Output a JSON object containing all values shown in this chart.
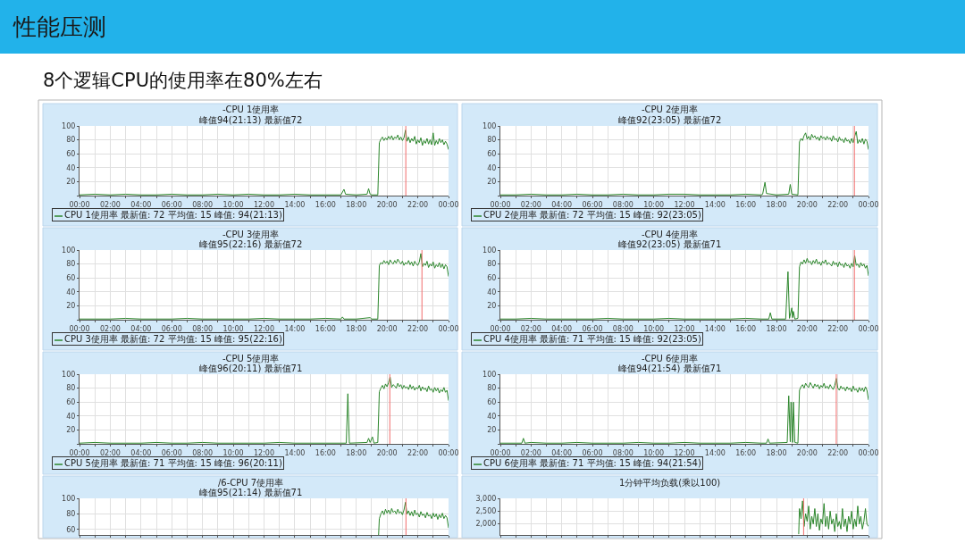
{
  "chart_data": [
    {
      "type": "other",
      "title": "性能压测",
      "subtitle": "8个逻辑CPU的使用率在80%左右"
    },
    {
      "type": "line",
      "title": "-CPU 1使用率",
      "subtitle": "峰值94(21:13) 最新值72",
      "xlim": [
        0,
        24
      ],
      "xticks": [
        {
          "value": 0,
          "label": "00:00"
        },
        {
          "value": 1,
          "label": null
        },
        {
          "value": 2,
          "label": "02:00"
        },
        {
          "value": 3,
          "label": null
        },
        {
          "value": 4,
          "label": "04:00"
        },
        {
          "value": 5,
          "label": null
        },
        {
          "value": 6,
          "label": "06:00"
        },
        {
          "value": 7,
          "label": null
        },
        {
          "value": 8,
          "label": "08:00"
        },
        {
          "value": 9,
          "label": null
        },
        {
          "value": 10,
          "label": "10:00"
        },
        {
          "value": 11,
          "label": null
        },
        {
          "value": 12,
          "label": "12:00"
        },
        {
          "value": 13,
          "label": null
        },
        {
          "value": 14,
          "label": "14:00"
        },
        {
          "value": 15,
          "label": null
        },
        {
          "value": 16,
          "label": "16:00"
        },
        {
          "value": 17,
          "label": null
        },
        {
          "value": 18,
          "label": "18:00"
        },
        {
          "value": 19,
          "label": null
        },
        {
          "value": 20,
          "label": "20:00"
        },
        {
          "value": 21,
          "label": null
        },
        {
          "value": 22,
          "label": "22:00"
        },
        {
          "value": 23,
          "label": null
        },
        {
          "value": 24,
          "label": "00:00"
        }
      ],
      "ylim": [
        0,
        100
      ],
      "yticks": [
        {
          "value": 0,
          "label": null
        },
        20,
        40,
        60,
        80,
        100
      ],
      "grid": true,
      "legend": "bottom left",
      "series": [
        {
          "name": "CPU 1使用率 最新值: 72 平均值: 15 峰值: 94(21:13)",
          "color": "#2b862b",
          "x": [
            0,
            1,
            2,
            3,
            4,
            5,
            6,
            7,
            8,
            9,
            10,
            11,
            12,
            13,
            14,
            15,
            16,
            17,
            17.2,
            17.3,
            18,
            18.7,
            18.8,
            18.9,
            19,
            19.4,
            19.5,
            19.6,
            19.7,
            19.8,
            19.9,
            20,
            20.1,
            20.2,
            20.3,
            20.4,
            20.5,
            20.6,
            20.7,
            20.8,
            20.9,
            21,
            21.1,
            21.2,
            21.3,
            21.4,
            21.5,
            21.6,
            21.7,
            21.8,
            21.9,
            22,
            22.1,
            22.2,
            22.3,
            22.4,
            22.5,
            22.6,
            22.7,
            22.8,
            22.9,
            23,
            23.1,
            23.2,
            23.3,
            23.4,
            23.5,
            23.6,
            23.7,
            23.8,
            23.9,
            24
          ],
          "values": [
            1,
            2,
            1,
            2,
            1,
            1,
            2,
            1,
            1,
            2,
            1,
            2,
            1,
            1,
            2,
            1,
            1,
            1,
            9,
            2,
            1,
            2,
            10,
            2,
            1,
            1,
            76,
            81,
            84,
            79,
            83,
            80,
            85,
            81,
            86,
            80,
            84,
            82,
            87,
            80,
            84,
            79,
            83,
            94,
            78,
            84,
            76,
            82,
            78,
            85,
            74,
            80,
            76,
            83,
            72,
            79,
            75,
            82,
            74,
            80,
            73,
            90,
            72,
            79,
            74,
            82,
            76,
            80,
            73,
            78,
            74,
            66
          ]
        }
      ],
      "ref_lines": [
        {
          "axis": "x",
          "value": 21.22,
          "color": "#f26b6b"
        }
      ]
    },
    {
      "type": "line",
      "title": "-CPU 2使用率",
      "subtitle": "峰值92(23:05) 最新值72",
      "xlim": [
        0,
        24
      ],
      "xticks": [
        {
          "value": 0,
          "label": "00:00"
        },
        {
          "value": 1,
          "label": null
        },
        {
          "value": 2,
          "label": "02:00"
        },
        {
          "value": 3,
          "label": null
        },
        {
          "value": 4,
          "label": "04:00"
        },
        {
          "value": 5,
          "label": null
        },
        {
          "value": 6,
          "label": "06:00"
        },
        {
          "value": 7,
          "label": null
        },
        {
          "value": 8,
          "label": "08:00"
        },
        {
          "value": 9,
          "label": null
        },
        {
          "value": 10,
          "label": "10:00"
        },
        {
          "value": 11,
          "label": null
        },
        {
          "value": 12,
          "label": "12:00"
        },
        {
          "value": 13,
          "label": null
        },
        {
          "value": 14,
          "label": "14:00"
        },
        {
          "value": 15,
          "label": null
        },
        {
          "value": 16,
          "label": "16:00"
        },
        {
          "value": 17,
          "label": null
        },
        {
          "value": 18,
          "label": "18:00"
        },
        {
          "value": 19,
          "label": null
        },
        {
          "value": 20,
          "label": "20:00"
        },
        {
          "value": 21,
          "label": null
        },
        {
          "value": 22,
          "label": "22:00"
        },
        {
          "value": 23,
          "label": null
        },
        {
          "value": 24,
          "label": "00:00"
        }
      ],
      "ylim": [
        0,
        100
      ],
      "yticks": [
        {
          "value": 0,
          "label": null
        },
        20,
        40,
        60,
        80,
        100
      ],
      "grid": true,
      "legend": "bottom left",
      "series": [
        {
          "name": "CPU 2使用率 最新值: 72 平均值: 15 峰值: 92(23:05)",
          "color": "#2b862b",
          "x": [
            0,
            1,
            2,
            3,
            4,
            5,
            6,
            7,
            8,
            9,
            10,
            11,
            12,
            13,
            14,
            15,
            16,
            17,
            17.1,
            17.25,
            17.35,
            18,
            18.8,
            18.9,
            19,
            19.4,
            19.5,
            19.6,
            19.7,
            19.8,
            19.9,
            20,
            20.1,
            20.2,
            20.3,
            20.4,
            20.5,
            20.6,
            20.7,
            20.8,
            20.9,
            21,
            21.1,
            21.2,
            21.3,
            21.4,
            21.5,
            21.6,
            21.7,
            21.8,
            21.9,
            22,
            22.1,
            22.2,
            22.3,
            22.4,
            22.5,
            22.6,
            22.7,
            22.8,
            22.9,
            23,
            23.1,
            23.2,
            23.3,
            23.4,
            23.5,
            23.6,
            23.7,
            23.8,
            23.9,
            24
          ],
          "values": [
            1,
            1,
            2,
            1,
            1,
            2,
            1,
            1,
            2,
            1,
            1,
            2,
            2,
            1,
            1,
            1,
            2,
            1,
            2,
            19,
            3,
            1,
            2,
            16,
            2,
            1,
            77,
            82,
            79,
            86,
            90,
            81,
            85,
            80,
            88,
            83,
            86,
            81,
            84,
            79,
            86,
            82,
            84,
            80,
            85,
            81,
            83,
            78,
            86,
            80,
            82,
            77,
            84,
            79,
            81,
            76,
            83,
            78,
            80,
            75,
            82,
            76,
            85,
            92,
            75,
            80,
            76,
            82,
            74,
            81,
            78,
            66
          ]
        }
      ],
      "ref_lines": [
        {
          "axis": "x",
          "value": 23.08,
          "color": "#f26b6b"
        }
      ]
    },
    {
      "type": "line",
      "title": "-CPU 3使用率",
      "subtitle": "峰值95(22:16) 最新值72",
      "xlim": [
        0,
        24
      ],
      "xticks": [
        {
          "value": 0,
          "label": "00:00"
        },
        {
          "value": 1,
          "label": null
        },
        {
          "value": 2,
          "label": "02:00"
        },
        {
          "value": 3,
          "label": null
        },
        {
          "value": 4,
          "label": "04:00"
        },
        {
          "value": 5,
          "label": null
        },
        {
          "value": 6,
          "label": "06:00"
        },
        {
          "value": 7,
          "label": null
        },
        {
          "value": 8,
          "label": "08:00"
        },
        {
          "value": 9,
          "label": null
        },
        {
          "value": 10,
          "label": "10:00"
        },
        {
          "value": 11,
          "label": null
        },
        {
          "value": 12,
          "label": "12:00"
        },
        {
          "value": 13,
          "label": null
        },
        {
          "value": 14,
          "label": "14:00"
        },
        {
          "value": 15,
          "label": null
        },
        {
          "value": 16,
          "label": "16:00"
        },
        {
          "value": 17,
          "label": null
        },
        {
          "value": 18,
          "label": "18:00"
        },
        {
          "value": 19,
          "label": null
        },
        {
          "value": 20,
          "label": "20:00"
        },
        {
          "value": 21,
          "label": null
        },
        {
          "value": 22,
          "label": "22:00"
        },
        {
          "value": 23,
          "label": null
        },
        {
          "value": 24,
          "label": "00:00"
        }
      ],
      "ylim": [
        0,
        100
      ],
      "yticks": [
        {
          "value": 0,
          "label": null
        },
        20,
        40,
        60,
        80,
        100
      ],
      "grid": true,
      "legend": "bottom left",
      "series": [
        {
          "name": "CPU 3使用率 最新值: 72 平均值: 15 峰值: 95(22:16)",
          "color": "#2b862b",
          "x": [
            0,
            1,
            2,
            3,
            4,
            5,
            6,
            7,
            8,
            9,
            10,
            11,
            12,
            13,
            14,
            15,
            16,
            17,
            17.1,
            17.2,
            18,
            18.9,
            19,
            19.4,
            19.5,
            19.6,
            19.7,
            19.8,
            19.9,
            20,
            20.1,
            20.2,
            20.3,
            20.4,
            20.5,
            20.6,
            20.7,
            20.8,
            20.9,
            21,
            21.1,
            21.2,
            21.3,
            21.4,
            21.5,
            21.6,
            21.7,
            21.8,
            21.9,
            22,
            22.1,
            22.2,
            22.3,
            22.4,
            22.5,
            22.6,
            22.7,
            22.8,
            22.9,
            23,
            23.1,
            23.2,
            23.3,
            23.4,
            23.5,
            23.6,
            23.7,
            23.8,
            23.9,
            24
          ],
          "values": [
            1,
            1,
            1,
            2,
            1,
            1,
            1,
            2,
            1,
            1,
            1,
            1,
            2,
            1,
            1,
            1,
            2,
            1,
            4,
            1,
            1,
            3,
            1,
            1,
            78,
            82,
            80,
            85,
            81,
            84,
            79,
            86,
            82,
            80,
            85,
            81,
            87,
            83,
            80,
            84,
            78,
            82,
            80,
            85,
            79,
            83,
            77,
            84,
            80,
            78,
            83,
            95,
            76,
            81,
            78,
            84,
            75,
            80,
            77,
            83,
            74,
            79,
            76,
            82,
            75,
            80,
            73,
            79,
            76,
            62
          ]
        }
      ],
      "ref_lines": [
        {
          "axis": "x",
          "value": 22.27,
          "color": "#f26b6b"
        }
      ]
    },
    {
      "type": "line",
      "title": "-CPU 4使用率",
      "subtitle": "峰值92(23:05) 最新值71",
      "xlim": [
        0,
        24
      ],
      "xticks": [
        {
          "value": 0,
          "label": "00:00"
        },
        {
          "value": 1,
          "label": null
        },
        {
          "value": 2,
          "label": "02:00"
        },
        {
          "value": 3,
          "label": null
        },
        {
          "value": 4,
          "label": "04:00"
        },
        {
          "value": 5,
          "label": null
        },
        {
          "value": 6,
          "label": "06:00"
        },
        {
          "value": 7,
          "label": null
        },
        {
          "value": 8,
          "label": "08:00"
        },
        {
          "value": 9,
          "label": null
        },
        {
          "value": 10,
          "label": "10:00"
        },
        {
          "value": 11,
          "label": null
        },
        {
          "value": 12,
          "label": "12:00"
        },
        {
          "value": 13,
          "label": null
        },
        {
          "value": 14,
          "label": "14:00"
        },
        {
          "value": 15,
          "label": null
        },
        {
          "value": 16,
          "label": "16:00"
        },
        {
          "value": 17,
          "label": null
        },
        {
          "value": 18,
          "label": "18:00"
        },
        {
          "value": 19,
          "label": null
        },
        {
          "value": 20,
          "label": "20:00"
        },
        {
          "value": 21,
          "label": null
        },
        {
          "value": 22,
          "label": "22:00"
        },
        {
          "value": 23,
          "label": null
        },
        {
          "value": 24,
          "label": "00:00"
        }
      ],
      "ylim": [
        0,
        100
      ],
      "yticks": [
        {
          "value": 0,
          "label": null
        },
        20,
        40,
        60,
        80,
        100
      ],
      "grid": true,
      "legend": "bottom left",
      "series": [
        {
          "name": "CPU 4使用率 最新值: 71 平均值: 15 峰值: 92(23:05)",
          "color": "#2b862b",
          "x": [
            0,
            1,
            2,
            3,
            4,
            5,
            6,
            7,
            8,
            9,
            10,
            11,
            12,
            13,
            14,
            15,
            16,
            17,
            17.5,
            17.6,
            17.7,
            18.6,
            18.75,
            18.85,
            19,
            19.05,
            19.1,
            19.2,
            19.4,
            19.5,
            19.6,
            19.7,
            19.8,
            19.9,
            20,
            20.1,
            20.2,
            20.3,
            20.4,
            20.5,
            20.6,
            20.7,
            20.8,
            20.9,
            21,
            21.1,
            21.2,
            21.3,
            21.4,
            21.5,
            21.6,
            21.7,
            21.8,
            21.9,
            22,
            22.1,
            22.2,
            22.3,
            22.4,
            22.5,
            22.6,
            22.7,
            22.8,
            22.9,
            23,
            23.1,
            23.2,
            23.3,
            23.4,
            23.5,
            23.6,
            23.7,
            23.8,
            23.9,
            24
          ],
          "values": [
            1,
            1,
            2,
            1,
            1,
            1,
            1,
            2,
            1,
            1,
            1,
            2,
            1,
            1,
            1,
            1,
            2,
            1,
            1,
            10,
            1,
            1,
            69,
            2,
            17,
            3,
            12,
            1,
            2,
            76,
            83,
            80,
            86,
            81,
            88,
            82,
            84,
            79,
            85,
            81,
            87,
            80,
            83,
            78,
            84,
            81,
            86,
            79,
            82,
            80,
            77,
            84,
            79,
            82,
            76,
            83,
            78,
            80,
            75,
            82,
            77,
            79,
            74,
            81,
            76,
            92,
            78,
            80,
            75,
            82,
            77,
            80,
            74,
            78,
            63
          ]
        }
      ],
      "ref_lines": [
        {
          "axis": "x",
          "value": 23.08,
          "color": "#f26b6b"
        }
      ]
    },
    {
      "type": "line",
      "title": "-CPU 5使用率",
      "subtitle": "峰值96(20:11) 最新值71",
      "xlim": [
        0,
        24
      ],
      "xticks": [
        {
          "value": 0,
          "label": "00:00"
        },
        {
          "value": 1,
          "label": null
        },
        {
          "value": 2,
          "label": "02:00"
        },
        {
          "value": 3,
          "label": null
        },
        {
          "value": 4,
          "label": "04:00"
        },
        {
          "value": 5,
          "label": null
        },
        {
          "value": 6,
          "label": "06:00"
        },
        {
          "value": 7,
          "label": null
        },
        {
          "value": 8,
          "label": "08:00"
        },
        {
          "value": 9,
          "label": null
        },
        {
          "value": 10,
          "label": "10:00"
        },
        {
          "value": 11,
          "label": null
        },
        {
          "value": 12,
          "label": "12:00"
        },
        {
          "value": 13,
          "label": null
        },
        {
          "value": 14,
          "label": "14:00"
        },
        {
          "value": 15,
          "label": null
        },
        {
          "value": 16,
          "label": "16:00"
        },
        {
          "value": 17,
          "label": null
        },
        {
          "value": 18,
          "label": "18:00"
        },
        {
          "value": 19,
          "label": null
        },
        {
          "value": 20,
          "label": "20:00"
        },
        {
          "value": 21,
          "label": null
        },
        {
          "value": 22,
          "label": "22:00"
        },
        {
          "value": 23,
          "label": null
        },
        {
          "value": 24,
          "label": "00:00"
        }
      ],
      "ylim": [
        0,
        100
      ],
      "yticks": [
        {
          "value": 0,
          "label": null
        },
        20,
        40,
        60,
        80,
        100
      ],
      "grid": true,
      "legend": "bottom left",
      "series": [
        {
          "name": "CPU 5使用率 最新值: 71 平均值: 15 峰值: 96(20:11)",
          "color": "#2b862b",
          "x": [
            0,
            1,
            2,
            3,
            4,
            5,
            6,
            7,
            8,
            9,
            10,
            11,
            12,
            13,
            14,
            15,
            16,
            17,
            17.35,
            17.45,
            17.55,
            18.7,
            18.8,
            18.9,
            19.05,
            19.15,
            19.4,
            19.5,
            19.6,
            19.7,
            19.8,
            19.9,
            20,
            20.1,
            20.2,
            20.3,
            20.4,
            20.5,
            20.6,
            20.7,
            20.8,
            20.9,
            21,
            21.1,
            21.2,
            21.3,
            21.4,
            21.5,
            21.6,
            21.7,
            21.8,
            21.9,
            22,
            22.1,
            22.2,
            22.3,
            22.4,
            22.5,
            22.6,
            22.7,
            22.8,
            22.9,
            23,
            23.1,
            23.2,
            23.3,
            23.4,
            23.5,
            23.6,
            23.7,
            23.8,
            23.9,
            24
          ],
          "values": [
            1,
            2,
            1,
            1,
            1,
            2,
            1,
            1,
            2,
            1,
            1,
            1,
            1,
            2,
            1,
            1,
            1,
            1,
            1,
            72,
            1,
            2,
            8,
            2,
            10,
            1,
            2,
            75,
            80,
            84,
            79,
            86,
            82,
            88,
            96,
            81,
            85,
            83,
            80,
            87,
            82,
            85,
            79,
            84,
            80,
            82,
            78,
            85,
            79,
            83,
            77,
            81,
            79,
            84,
            76,
            82,
            78,
            80,
            75,
            83,
            77,
            79,
            74,
            81,
            76,
            80,
            73,
            78,
            75,
            81,
            74,
            77,
            62
          ]
        }
      ],
      "ref_lines": [
        {
          "axis": "x",
          "value": 20.18,
          "color": "#f26b6b"
        }
      ]
    },
    {
      "type": "line",
      "title": "-CPU 6使用率",
      "subtitle": "峰值94(21:54) 最新值71",
      "xlim": [
        0,
        24
      ],
      "xticks": [
        {
          "value": 0,
          "label": "00:00"
        },
        {
          "value": 1,
          "label": null
        },
        {
          "value": 2,
          "label": "02:00"
        },
        {
          "value": 3,
          "label": null
        },
        {
          "value": 4,
          "label": "04:00"
        },
        {
          "value": 5,
          "label": null
        },
        {
          "value": 6,
          "label": "06:00"
        },
        {
          "value": 7,
          "label": null
        },
        {
          "value": 8,
          "label": "08:00"
        },
        {
          "value": 9,
          "label": null
        },
        {
          "value": 10,
          "label": "10:00"
        },
        {
          "value": 11,
          "label": null
        },
        {
          "value": 12,
          "label": "12:00"
        },
        {
          "value": 13,
          "label": null
        },
        {
          "value": 14,
          "label": "14:00"
        },
        {
          "value": 15,
          "label": null
        },
        {
          "value": 16,
          "label": "16:00"
        },
        {
          "value": 17,
          "label": null
        },
        {
          "value": 18,
          "label": "18:00"
        },
        {
          "value": 19,
          "label": null
        },
        {
          "value": 20,
          "label": "20:00"
        },
        {
          "value": 21,
          "label": null
        },
        {
          "value": 22,
          "label": "22:00"
        },
        {
          "value": 23,
          "label": null
        },
        {
          "value": 24,
          "label": "00:00"
        }
      ],
      "ylim": [
        0,
        100
      ],
      "yticks": [
        {
          "value": 0,
          "label": null
        },
        20,
        40,
        60,
        80,
        100
      ],
      "grid": true,
      "legend": "bottom left",
      "series": [
        {
          "name": "CPU 6使用率 最新值: 71 平均值: 15 峰值: 94(21:54)",
          "color": "#2b862b",
          "x": [
            0,
            1,
            1.4,
            1.5,
            1.6,
            2,
            3,
            4,
            5,
            6,
            7,
            8,
            9,
            10,
            11,
            12,
            13,
            14,
            15,
            16,
            17,
            17.35,
            17.45,
            17.55,
            18.7,
            18.8,
            18.9,
            18.95,
            19.05,
            19.1,
            19.2,
            19.4,
            19.5,
            19.6,
            19.7,
            19.8,
            19.9,
            20,
            20.1,
            20.2,
            20.3,
            20.4,
            20.5,
            20.6,
            20.7,
            20.8,
            20.9,
            21,
            21.1,
            21.2,
            21.3,
            21.4,
            21.5,
            21.6,
            21.7,
            21.8,
            21.9,
            22,
            22.1,
            22.2,
            22.3,
            22.4,
            22.5,
            22.6,
            22.7,
            22.8,
            22.9,
            23,
            23.1,
            23.2,
            23.3,
            23.4,
            23.5,
            23.6,
            23.7,
            23.8,
            23.9,
            24
          ],
          "values": [
            1,
            1,
            1,
            8,
            1,
            2,
            1,
            1,
            2,
            1,
            1,
            1,
            2,
            1,
            1,
            2,
            1,
            1,
            1,
            2,
            1,
            1,
            7,
            1,
            2,
            69,
            3,
            60,
            2,
            60,
            2,
            1,
            77,
            82,
            85,
            80,
            87,
            83,
            81,
            88,
            84,
            80,
            86,
            82,
            85,
            79,
            84,
            81,
            87,
            80,
            83,
            79,
            85,
            81,
            78,
            84,
            94,
            80,
            77,
            83,
            79,
            81,
            76,
            82,
            78,
            80,
            75,
            83,
            77,
            79,
            74,
            81,
            76,
            80,
            75,
            82,
            77,
            63
          ]
        }
      ],
      "ref_lines": [
        {
          "axis": "x",
          "value": 21.9,
          "color": "#f26b6b"
        }
      ]
    },
    {
      "type": "line",
      "title": "/6-CPU 7使用率",
      "subtitle": "峰值95(21:14) 最新值71",
      "xlim": [
        0,
        24
      ],
      "xticks": [
        {
          "value": 0,
          "label": null
        },
        {
          "value": 1,
          "label": null
        },
        {
          "value": 2,
          "label": null
        },
        {
          "value": 3,
          "label": null
        },
        {
          "value": 4,
          "label": null
        },
        {
          "value": 5,
          "label": null
        },
        {
          "value": 6,
          "label": null
        },
        {
          "value": 7,
          "label": null
        },
        {
          "value": 8,
          "label": null
        },
        {
          "value": 9,
          "label": null
        },
        {
          "value": 10,
          "label": null
        },
        {
          "value": 11,
          "label": null
        },
        {
          "value": 12,
          "label": null
        },
        {
          "value": 13,
          "label": null
        },
        {
          "value": 14,
          "label": null
        },
        {
          "value": 15,
          "label": null
        },
        {
          "value": 16,
          "label": null
        },
        {
          "value": 17,
          "label": null
        },
        {
          "value": 18,
          "label": null
        },
        {
          "value": 19,
          "label": null
        },
        {
          "value": 20,
          "label": null
        },
        {
          "value": 21,
          "label": null
        },
        {
          "value": 22,
          "label": null
        },
        {
          "value": 23,
          "label": null
        },
        {
          "value": 24,
          "label": null
        }
      ],
      "ylim": [
        53,
        100
      ],
      "yticks": [
        60,
        80,
        100
      ],
      "tick_labels": "y",
      "grid": true,
      "series": [
        {
          "color": "#2b862b",
          "x": [
            19.45,
            19.5,
            19.6,
            19.7,
            19.8,
            19.9,
            20,
            20.1,
            20.2,
            20.3,
            20.4,
            20.5,
            20.6,
            20.7,
            20.8,
            20.9,
            21,
            21.1,
            21.2,
            21.3,
            21.4,
            21.5,
            21.6,
            21.7,
            21.8,
            21.9,
            22,
            22.1,
            22.2,
            22.3,
            22.4,
            22.5,
            22.6,
            22.7,
            22.8,
            22.9,
            23,
            23.1,
            23.2,
            23.3,
            23.4,
            23.5,
            23.6,
            23.7,
            23.8,
            23.9,
            24
          ],
          "values": [
            53,
            74,
            80,
            84,
            79,
            86,
            81,
            85,
            80,
            87,
            82,
            84,
            80,
            86,
            81,
            83,
            79,
            85,
            95,
            80,
            84,
            78,
            83,
            77,
            85,
            79,
            81,
            76,
            83,
            78,
            80,
            75,
            82,
            77,
            79,
            74,
            81,
            76,
            80,
            73,
            79,
            75,
            81,
            74,
            78,
            75,
            62
          ]
        }
      ],
      "ref_lines": [
        {
          "axis": "x",
          "value": 21.23,
          "color": "#f26b6b"
        }
      ]
    },
    {
      "type": "line",
      "title": "1分钟平均负载(乘以100)",
      "xlim": [
        0,
        24
      ],
      "xticks": [
        {
          "value": 0,
          "label": null
        },
        {
          "value": 1,
          "label": null
        },
        {
          "value": 2,
          "label": null
        },
        {
          "value": 3,
          "label": null
        },
        {
          "value": 4,
          "label": null
        },
        {
          "value": 5,
          "label": null
        },
        {
          "value": 6,
          "label": null
        },
        {
          "value": 7,
          "label": null
        },
        {
          "value": 8,
          "label": null
        },
        {
          "value": 9,
          "label": null
        },
        {
          "value": 10,
          "label": null
        },
        {
          "value": 11,
          "label": null
        },
        {
          "value": 12,
          "label": null
        },
        {
          "value": 13,
          "label": null
        },
        {
          "value": 14,
          "label": null
        },
        {
          "value": 15,
          "label": null
        },
        {
          "value": 16,
          "label": null
        },
        {
          "value": 17,
          "label": null
        },
        {
          "value": 18,
          "label": null
        },
        {
          "value": 19,
          "label": null
        },
        {
          "value": 20,
          "label": null
        },
        {
          "value": 21,
          "label": null
        },
        {
          "value": 22,
          "label": null
        },
        {
          "value": 23,
          "label": null
        },
        {
          "value": 24,
          "label": null
        }
      ],
      "ylim": [
        1570,
        3000
      ],
      "yticks": [
        {
          "value": 2000,
          "label": "2,000"
        },
        {
          "value": 2500,
          "label": "2,500"
        },
        {
          "value": 3000,
          "label": "3,000"
        }
      ],
      "tick_labels": "y",
      "grid": true,
      "series": [
        {
          "color": "#2b862b",
          "x": [
            19.45,
            19.5,
            19.6,
            19.7,
            19.8,
            19.9,
            20,
            20.1,
            20.2,
            20.3,
            20.4,
            20.5,
            20.6,
            20.7,
            20.8,
            20.9,
            21,
            21.1,
            21.2,
            21.3,
            21.4,
            21.5,
            21.6,
            21.7,
            21.8,
            21.9,
            22,
            22.1,
            22.2,
            22.3,
            22.4,
            22.5,
            22.6,
            22.7,
            22.8,
            22.9,
            23,
            23.1,
            23.2,
            23.3,
            23.4,
            23.5,
            23.6,
            23.7,
            23.8,
            23.9,
            24
          ],
          "values": [
            1600,
            2600,
            2200,
            2900,
            1900,
            2400,
            2100,
            2700,
            1800,
            2300,
            2000,
            2600,
            1900,
            2400,
            1750,
            2200,
            2000,
            2800,
            1900,
            2300,
            1800,
            2500,
            2000,
            2200,
            1700,
            2400,
            1900,
            2100,
            1800,
            2600,
            1900,
            2200,
            1700,
            2300,
            2000,
            2500,
            1800,
            2200,
            1900,
            2700,
            2000,
            2300,
            1800,
            2100,
            2600,
            2000,
            1900
          ]
        }
      ],
      "ref_lines": [
        {
          "axis": "x",
          "value": 19.77,
          "color": "#f26b6b"
        }
      ]
    }
  ]
}
